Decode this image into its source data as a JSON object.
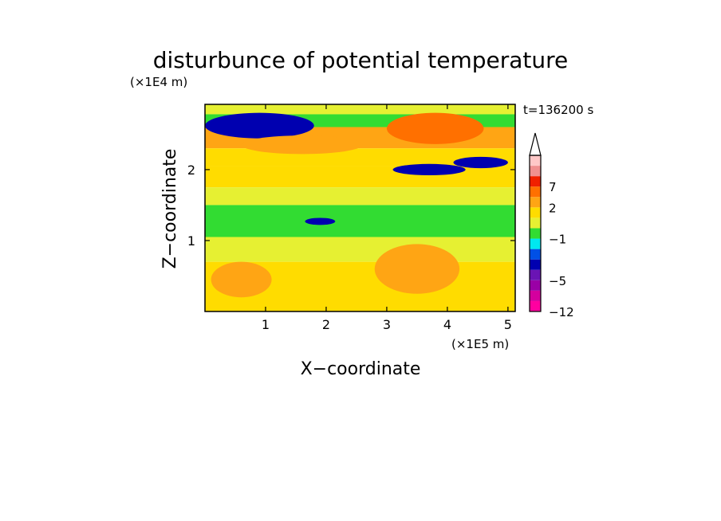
{
  "chart_data": {
    "type": "heatmap",
    "title": "disturbunce of potential temperature",
    "time_label": "t=136200 s",
    "xlabel": "X−coordinate",
    "ylabel": "Z−coordinate",
    "x_unit": "(×1E5 m)",
    "y_unit": "(×1E4 m)",
    "xlim": [
      0,
      5.12
    ],
    "ylim": [
      0,
      2.92
    ],
    "x_ticks": [
      "1",
      "2",
      "3",
      "4",
      "5"
    ],
    "y_ticks": [
      "1",
      "2"
    ],
    "colorbar": {
      "labels": [
        {
          "text": "7",
          "value": 7
        },
        {
          "text": "2",
          "value": 2
        },
        {
          "text": "−1",
          "value": -1
        },
        {
          "text": "−5",
          "value": -5
        },
        {
          "text": "−12",
          "value": -12
        }
      ],
      "extend": "max",
      "colors": [
        "#ff00a0",
        "#d4009e",
        "#9a00a6",
        "#6a14b4",
        "#0000b0",
        "#0050e6",
        "#00e8f0",
        "#32dc32",
        "#e6f032",
        "#ffdc00",
        "#ffa514",
        "#ff7000",
        "#f02000",
        "#f09090",
        "#ffc8c8"
      ]
    },
    "bands": [
      {
        "z_top": 2.92,
        "z_bottom": 2.78,
        "value": 0.5
      },
      {
        "z_top": 2.78,
        "z_bottom": 2.6,
        "value": -1
      },
      {
        "z_top": 2.6,
        "z_bottom": 2.3,
        "value": 2
      },
      {
        "z_top": 2.3,
        "z_bottom": 2.05,
        "value": 1
      },
      {
        "z_top": 2.05,
        "z_bottom": 1.75,
        "value": 1.5
      },
      {
        "z_top": 1.75,
        "z_bottom": 1.5,
        "value": 0.5
      },
      {
        "z_top": 1.5,
        "z_bottom": 1.05,
        "value": -1
      },
      {
        "z_top": 1.05,
        "z_bottom": 0.7,
        "value": 0.3
      },
      {
        "z_top": 0.7,
        "z_bottom": 0,
        "value": 1
      }
    ],
    "features": [
      {
        "x": 0.9,
        "z": 2.62,
        "rx": 0.9,
        "rz": 0.18,
        "value": -4
      },
      {
        "x": 1.6,
        "z": 2.35,
        "rx": 1.0,
        "rz": 0.13,
        "value": 3
      },
      {
        "x": 3.8,
        "z": 2.58,
        "rx": 0.8,
        "rz": 0.22,
        "value": 4
      },
      {
        "x": 3.7,
        "z": 2.0,
        "rx": 0.6,
        "rz": 0.08,
        "value": -4
      },
      {
        "x": 4.55,
        "z": 2.1,
        "rx": 0.45,
        "rz": 0.08,
        "value": -4
      },
      {
        "x": 1.9,
        "z": 1.27,
        "rx": 0.25,
        "rz": 0.05,
        "value": -4
      },
      {
        "x": 3.5,
        "z": 0.6,
        "rx": 0.7,
        "rz": 0.35,
        "value": 2
      },
      {
        "x": 0.6,
        "z": 0.45,
        "rx": 0.5,
        "rz": 0.25,
        "value": 2
      }
    ]
  }
}
